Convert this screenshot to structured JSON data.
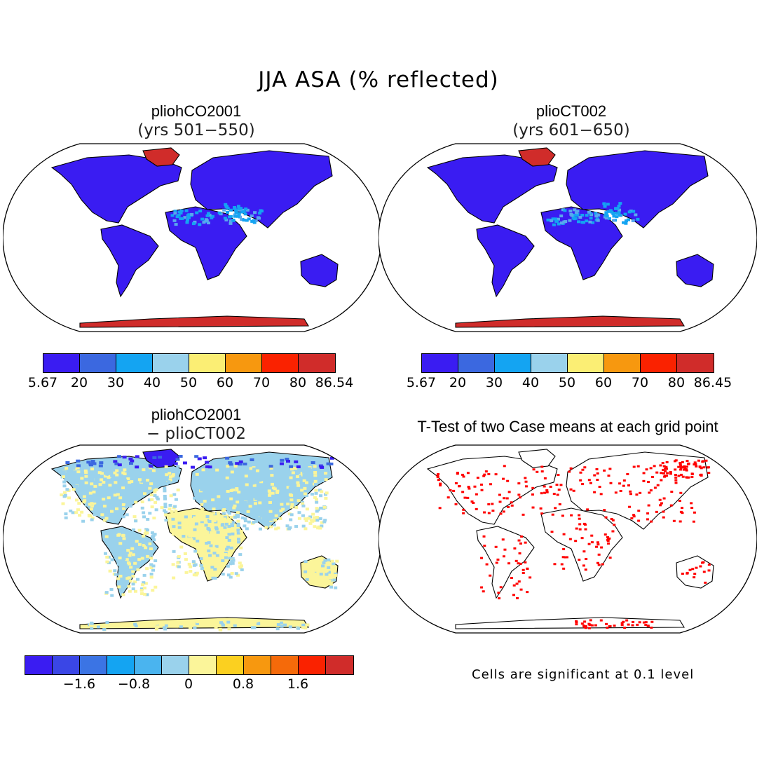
{
  "title": "JJA ASA (% reflected)",
  "panels": {
    "tl": {
      "title": "pliohCO2001",
      "subtitle": "(yrs 501−550)"
    },
    "tr": {
      "title": "plioCT002",
      "subtitle": "(yrs 601−650)"
    },
    "bl": {
      "title": "pliohCO2001",
      "subtitle": "− plioCT002"
    },
    "br": {
      "title": "T-Test of two Case means at each grid point",
      "subtitle": ""
    }
  },
  "colorbars": {
    "top_left": {
      "colors": [
        "#3a1cf2",
        "#3b68e0",
        "#14a4f2",
        "#9ad2ec",
        "#fbee74",
        "#f7980f",
        "#fa2200",
        "#d02c2a"
      ],
      "labels": [
        "5.67",
        "20",
        "30",
        "40",
        "50",
        "60",
        "70",
        "80",
        "86.54"
      ]
    },
    "top_right": {
      "colors": [
        "#3a1cf2",
        "#3b68e0",
        "#14a4f2",
        "#9ad2ec",
        "#fbee74",
        "#f7980f",
        "#fa2200",
        "#d02c2a"
      ],
      "labels": [
        "5.67",
        "20",
        "30",
        "40",
        "50",
        "60",
        "70",
        "80",
        "86.45"
      ]
    },
    "bottom_left": {
      "colors": [
        "#3a1cf2",
        "#3a46e6",
        "#3b74e4",
        "#14a4f2",
        "#4ab4ef",
        "#9ad2ec",
        "#fbf59a",
        "#fbd020",
        "#f7980f",
        "#f56a0a",
        "#fa2200",
        "#d02c2a"
      ],
      "labels": [
        "−1.6",
        "−0.8",
        "0",
        "0.8",
        "1.6"
      ]
    }
  },
  "significance_note": "Cells are significant at 0.1 level",
  "colors": {
    "land_low": "#3a1cf2",
    "land_mid": "#14a4f2",
    "ice_high": "#d02c2a",
    "diff_blue": "#9ad2ec",
    "diff_yellow": "#fbf59a",
    "significant": "#ff0000"
  }
}
